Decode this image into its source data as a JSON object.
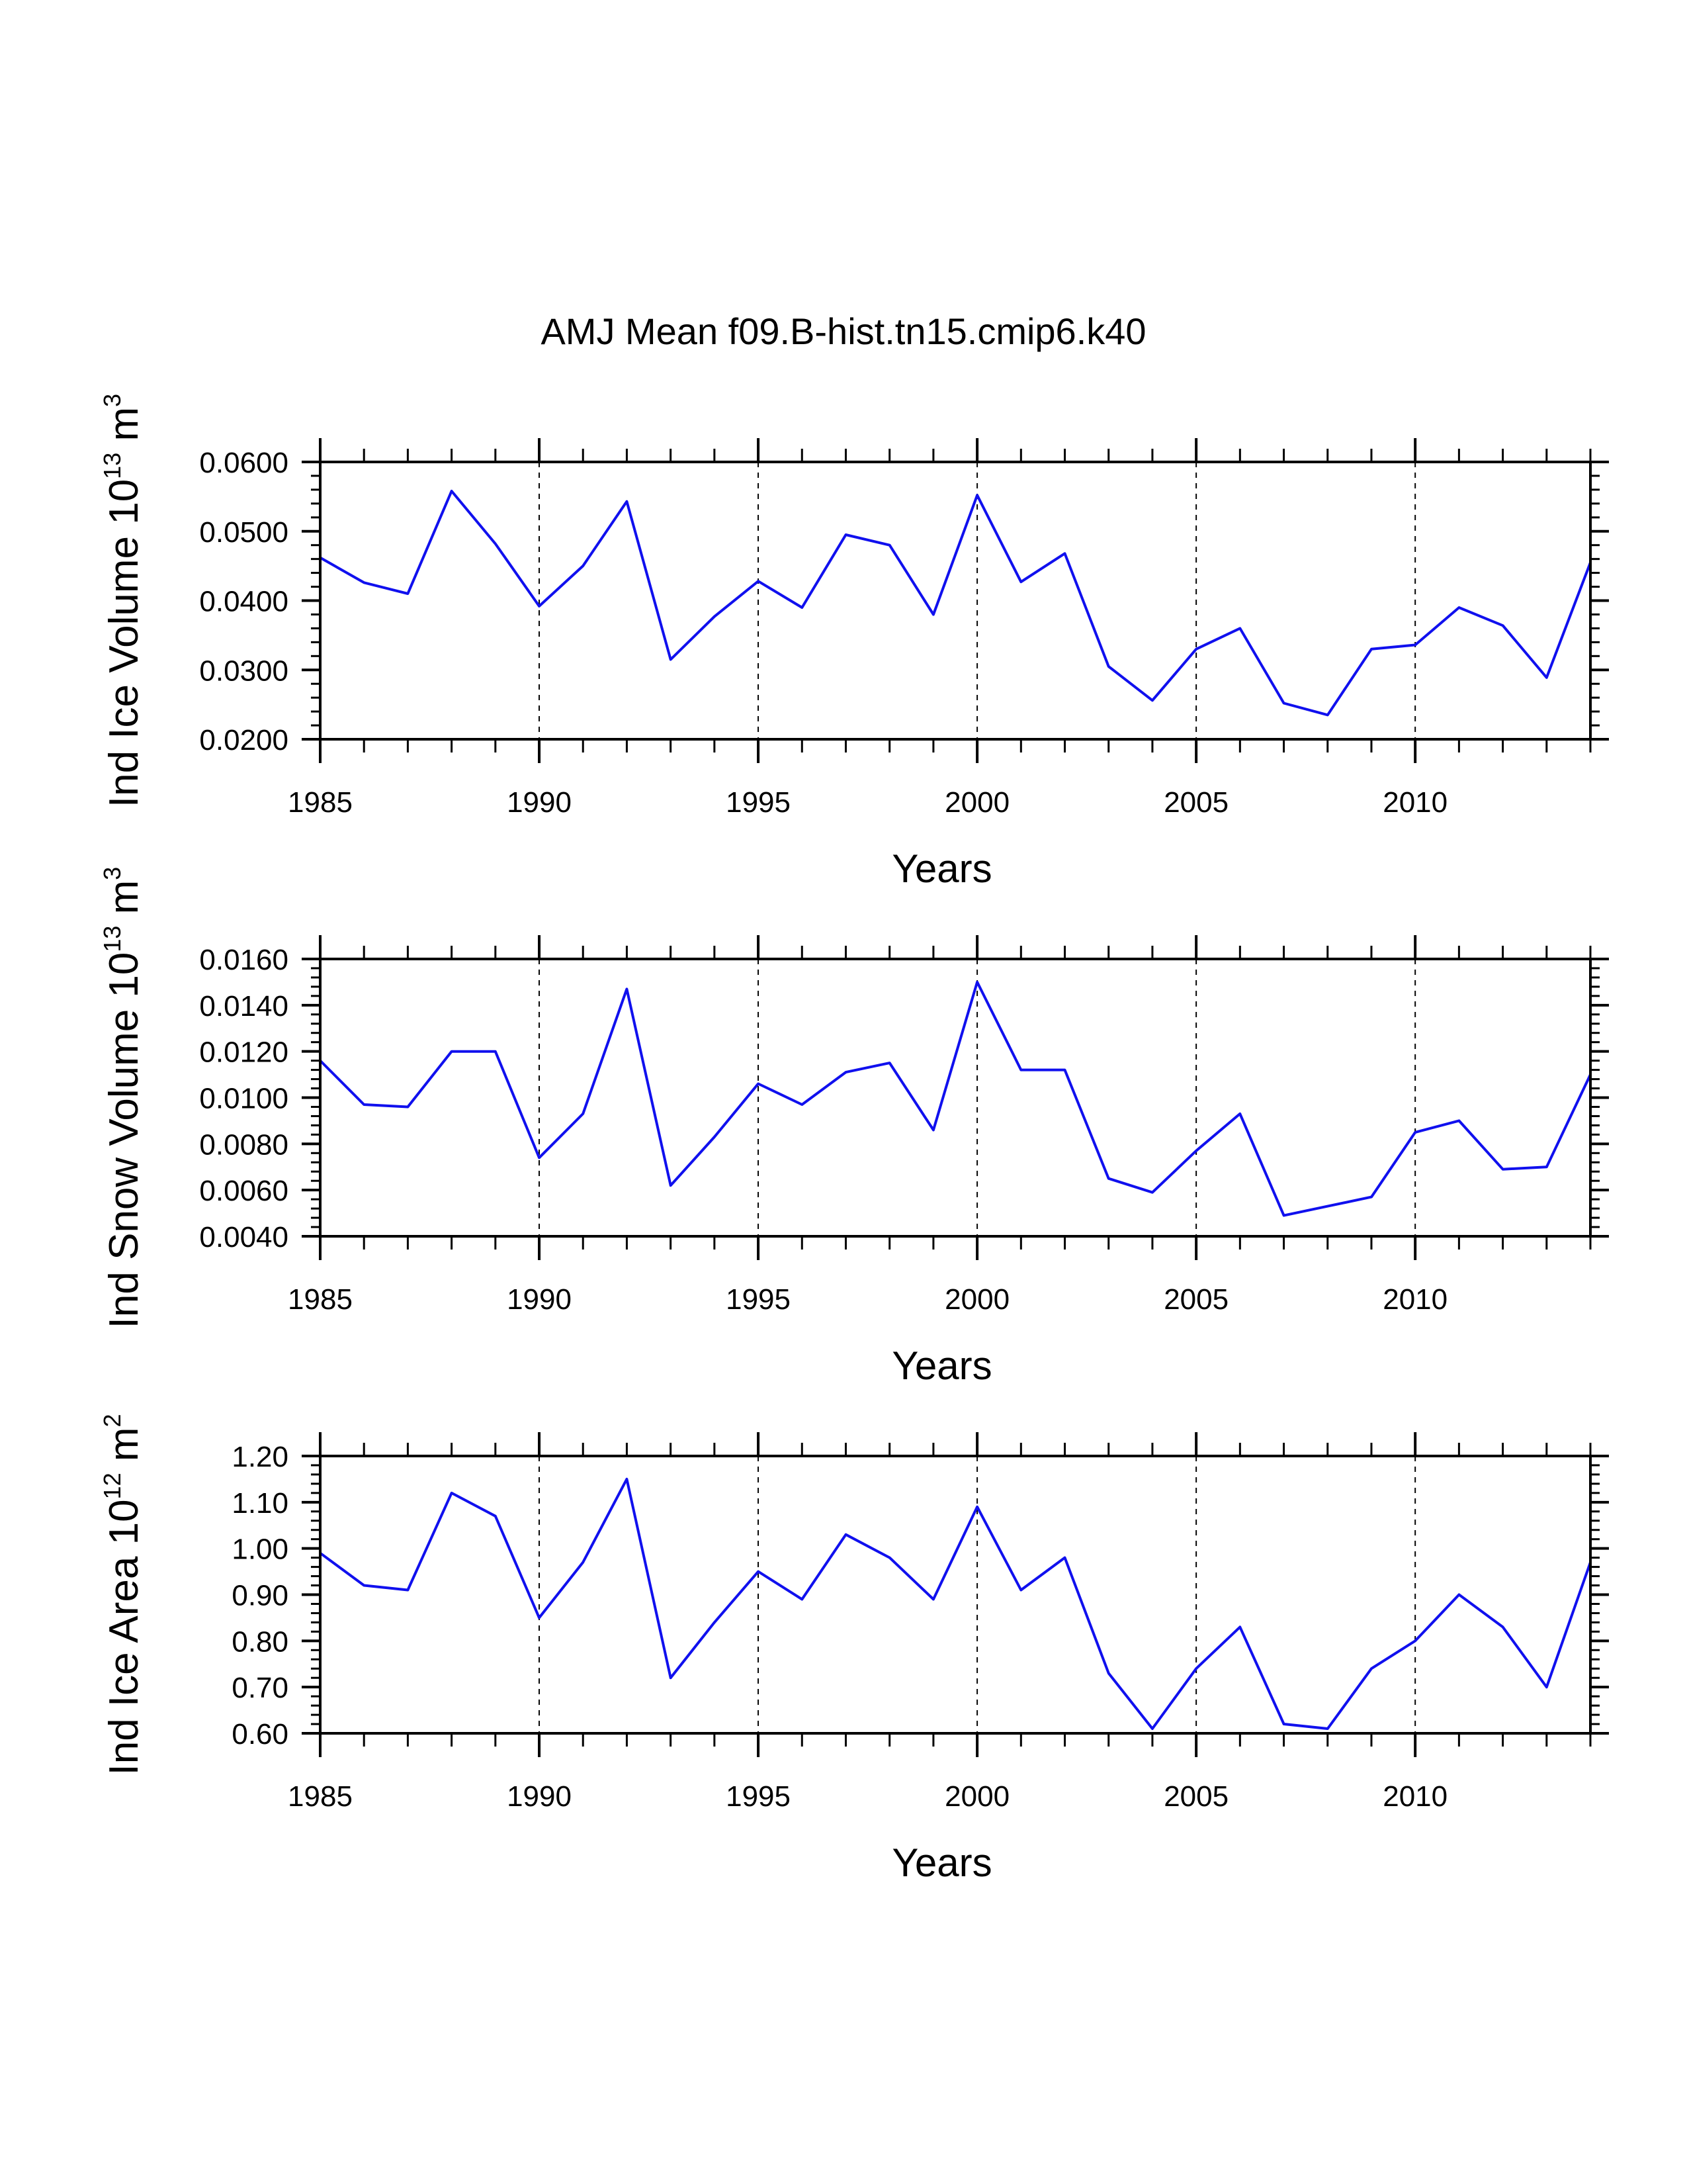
{
  "figure_title": "AMJ Mean f09.B-hist.tn15.cmip6.k40",
  "chart_data": [
    {
      "type": "line",
      "ylabel": {
        "main": "Ind Ice Volume 10",
        "exp": "13",
        "unit": " m",
        "unit_exp": "3"
      },
      "xlabel": "Years",
      "x": [
        1985,
        1986,
        1987,
        1988,
        1989,
        1990,
        1991,
        1992,
        1993,
        1994,
        1995,
        1996,
        1997,
        1998,
        1999,
        2000,
        2001,
        2002,
        2003,
        2004,
        2005,
        2006,
        2007,
        2008,
        2009,
        2010,
        2011,
        2012,
        2013,
        2014
      ],
      "values": [
        0.0462,
        0.0426,
        0.041,
        0.0558,
        0.0482,
        0.0392,
        0.045,
        0.0543,
        0.0315,
        0.0377,
        0.0428,
        0.039,
        0.0495,
        0.048,
        0.038,
        0.0552,
        0.0427,
        0.0468,
        0.0305,
        0.0256,
        0.033,
        0.036,
        0.0252,
        0.0235,
        0.033,
        0.0336,
        0.039,
        0.0364,
        0.0289,
        0.0455
      ],
      "xlim": [
        1985,
        2014
      ],
      "ylim": [
        0.02,
        0.06
      ],
      "yticks": [
        "0.0200",
        "0.0300",
        "0.0400",
        "0.0500",
        "0.0600"
      ],
      "xticks": [
        "1985",
        "1990",
        "1995",
        "2000",
        "2005",
        "2010"
      ],
      "color": "#1010ee"
    },
    {
      "type": "line",
      "ylabel": {
        "main": "Ind Snow Volume 10",
        "exp": "13",
        "unit": " m",
        "unit_exp": "3"
      },
      "xlabel": "Years",
      "x": [
        1985,
        1986,
        1987,
        1988,
        1989,
        1990,
        1991,
        1992,
        1993,
        1994,
        1995,
        1996,
        1997,
        1998,
        1999,
        2000,
        2001,
        2002,
        2003,
        2004,
        2005,
        2006,
        2007,
        2008,
        2009,
        2010,
        2011,
        2012,
        2013,
        2014
      ],
      "values": [
        0.0116,
        0.0097,
        0.0096,
        0.012,
        0.012,
        0.0074,
        0.0093,
        0.0147,
        0.0062,
        0.0083,
        0.0106,
        0.0097,
        0.0111,
        0.0115,
        0.0086,
        0.015,
        0.0112,
        0.0112,
        0.0065,
        0.0059,
        0.0077,
        0.0093,
        0.0049,
        0.0053,
        0.0057,
        0.0085,
        0.009,
        0.0069,
        0.007,
        0.011
      ],
      "xlim": [
        1985,
        2014
      ],
      "ylim": [
        0.004,
        0.016
      ],
      "yticks": [
        "0.0040",
        "0.0060",
        "0.0080",
        "0.0100",
        "0.0120",
        "0.0140",
        "0.0160"
      ],
      "xticks": [
        "1985",
        "1990",
        "1995",
        "2000",
        "2005",
        "2010"
      ],
      "color": "#1010ee"
    },
    {
      "type": "line",
      "ylabel": {
        "main": "Ind Ice Area 10",
        "exp": "12",
        "unit": " m",
        "unit_exp": "2"
      },
      "xlabel": "Years",
      "x": [
        1985,
        1986,
        1987,
        1988,
        1989,
        1990,
        1991,
        1992,
        1993,
        1994,
        1995,
        1996,
        1997,
        1998,
        1999,
        2000,
        2001,
        2002,
        2003,
        2004,
        2005,
        2006,
        2007,
        2008,
        2009,
        2010,
        2011,
        2012,
        2013,
        2014
      ],
      "values": [
        0.99,
        0.92,
        0.91,
        1.12,
        1.07,
        0.85,
        0.97,
        1.15,
        0.72,
        0.84,
        0.95,
        0.89,
        1.03,
        0.98,
        0.89,
        1.09,
        0.91,
        0.98,
        0.73,
        0.61,
        0.74,
        0.83,
        0.62,
        0.61,
        0.74,
        0.8,
        0.9,
        0.83,
        0.7,
        0.97
      ],
      "xlim": [
        1985,
        2014
      ],
      "ylim": [
        0.6,
        1.2
      ],
      "yticks": [
        "0.60",
        "0.70",
        "0.80",
        "0.90",
        "1.00",
        "1.10",
        "1.20"
      ],
      "xticks": [
        "1985",
        "1990",
        "1995",
        "2000",
        "2005",
        "2010"
      ],
      "color": "#1010ee"
    }
  ]
}
